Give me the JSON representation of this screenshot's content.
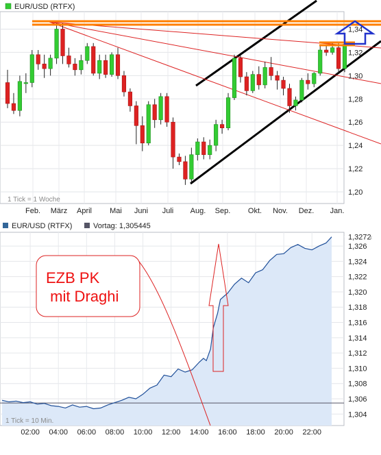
{
  "chart_data": [
    {
      "type": "candlestick",
      "legend": "EUR/USD (RTFX)",
      "tick_note": "1 Tick = 1 Woche",
      "x_tick_labels": [
        "Feb.",
        "März",
        "April",
        "Mai",
        "Juni",
        "Juli",
        "Aug.",
        "Sep.",
        "Okt.",
        "Nov.",
        "Dez.",
        "Jan."
      ],
      "y_tick_labels": [
        "1,20",
        "1,22",
        "1,24",
        "1,26",
        "1,28",
        "1,30",
        "1,32",
        "1,34"
      ],
      "y_ticks": [
        1.2,
        1.22,
        1.24,
        1.26,
        1.28,
        1.3,
        1.32,
        1.34
      ],
      "ylim": [
        1.19,
        1.355
      ],
      "up_color": "#33cc33",
      "down_color": "#dd2222",
      "candles": [
        {
          "o": 1.294,
          "h": 1.305,
          "l": 1.272,
          "c": 1.276
        },
        {
          "o": 1.276,
          "h": 1.285,
          "l": 1.267,
          "c": 1.27
        },
        {
          "o": 1.27,
          "h": 1.3,
          "l": 1.265,
          "c": 1.295
        },
        {
          "o": 1.294,
          "h": 1.302,
          "l": 1.285,
          "c": 1.294
        },
        {
          "o": 1.294,
          "h": 1.322,
          "l": 1.29,
          "c": 1.318
        },
        {
          "o": 1.318,
          "h": 1.322,
          "l": 1.305,
          "c": 1.31
        },
        {
          "o": 1.31,
          "h": 1.318,
          "l": 1.298,
          "c": 1.306
        },
        {
          "o": 1.306,
          "h": 1.318,
          "l": 1.3,
          "c": 1.315
        },
        {
          "o": 1.315,
          "h": 1.345,
          "l": 1.31,
          "c": 1.34
        },
        {
          "o": 1.34,
          "h": 1.345,
          "l": 1.31,
          "c": 1.317
        },
        {
          "o": 1.317,
          "h": 1.324,
          "l": 1.307,
          "c": 1.31
        },
        {
          "o": 1.31,
          "h": 1.315,
          "l": 1.3,
          "c": 1.305
        },
        {
          "o": 1.305,
          "h": 1.318,
          "l": 1.301,
          "c": 1.313
        },
        {
          "o": 1.313,
          "h": 1.328,
          "l": 1.31,
          "c": 1.325
        },
        {
          "o": 1.325,
          "h": 1.328,
          "l": 1.3,
          "c": 1.302
        },
        {
          "o": 1.302,
          "h": 1.318,
          "l": 1.297,
          "c": 1.313
        },
        {
          "o": 1.313,
          "h": 1.318,
          "l": 1.298,
          "c": 1.301
        },
        {
          "o": 1.301,
          "h": 1.32,
          "l": 1.299,
          "c": 1.318
        },
        {
          "o": 1.318,
          "h": 1.324,
          "l": 1.297,
          "c": 1.3
        },
        {
          "o": 1.3,
          "h": 1.304,
          "l": 1.282,
          "c": 1.286
        },
        {
          "o": 1.286,
          "h": 1.289,
          "l": 1.269,
          "c": 1.274
        },
        {
          "o": 1.274,
          "h": 1.278,
          "l": 1.241,
          "c": 1.257
        },
        {
          "o": 1.257,
          "h": 1.265,
          "l": 1.235,
          "c": 1.242
        },
        {
          "o": 1.242,
          "h": 1.278,
          "l": 1.24,
          "c": 1.275
        },
        {
          "o": 1.275,
          "h": 1.28,
          "l": 1.255,
          "c": 1.262
        },
        {
          "o": 1.262,
          "h": 1.285,
          "l": 1.258,
          "c": 1.282
        },
        {
          "o": 1.282,
          "h": 1.285,
          "l": 1.256,
          "c": 1.26
        },
        {
          "o": 1.26,
          "h": 1.264,
          "l": 1.22,
          "c": 1.23
        },
        {
          "o": 1.23,
          "h": 1.233,
          "l": 1.223,
          "c": 1.226
        },
        {
          "o": 1.226,
          "h": 1.231,
          "l": 1.206,
          "c": 1.211
        },
        {
          "o": 1.211,
          "h": 1.238,
          "l": 1.208,
          "c": 1.232
        },
        {
          "o": 1.232,
          "h": 1.246,
          "l": 1.227,
          "c": 1.243
        },
        {
          "o": 1.243,
          "h": 1.247,
          "l": 1.228,
          "c": 1.232
        },
        {
          "o": 1.232,
          "h": 1.245,
          "l": 1.228,
          "c": 1.24
        },
        {
          "o": 1.24,
          "h": 1.262,
          "l": 1.235,
          "c": 1.258
        },
        {
          "o": 1.258,
          "h": 1.262,
          "l": 1.25,
          "c": 1.255
        },
        {
          "o": 1.255,
          "h": 1.285,
          "l": 1.253,
          "c": 1.281
        },
        {
          "o": 1.281,
          "h": 1.318,
          "l": 1.279,
          "c": 1.315
        },
        {
          "o": 1.315,
          "h": 1.318,
          "l": 1.294,
          "c": 1.299
        },
        {
          "o": 1.299,
          "h": 1.303,
          "l": 1.283,
          "c": 1.287
        },
        {
          "o": 1.287,
          "h": 1.304,
          "l": 1.285,
          "c": 1.301
        },
        {
          "o": 1.301,
          "h": 1.308,
          "l": 1.288,
          "c": 1.292
        },
        {
          "o": 1.292,
          "h": 1.312,
          "l": 1.289,
          "c": 1.307
        },
        {
          "o": 1.307,
          "h": 1.316,
          "l": 1.296,
          "c": 1.3
        },
        {
          "o": 1.3,
          "h": 1.304,
          "l": 1.288,
          "c": 1.296
        },
        {
          "o": 1.296,
          "h": 1.299,
          "l": 1.283,
          "c": 1.289
        },
        {
          "o": 1.289,
          "h": 1.293,
          "l": 1.268,
          "c": 1.274
        },
        {
          "o": 1.274,
          "h": 1.282,
          "l": 1.27,
          "c": 1.279
        },
        {
          "o": 1.279,
          "h": 1.298,
          "l": 1.277,
          "c": 1.296
        },
        {
          "o": 1.296,
          "h": 1.302,
          "l": 1.288,
          "c": 1.293
        },
        {
          "o": 1.293,
          "h": 1.303,
          "l": 1.29,
          "c": 1.302
        },
        {
          "o": 1.302,
          "h": 1.326,
          "l": 1.3,
          "c": 1.322
        },
        {
          "o": 1.322,
          "h": 1.326,
          "l": 1.317,
          "c": 1.32
        },
        {
          "o": 1.32,
          "h": 1.328,
          "l": 1.318,
          "c": 1.324
        },
        {
          "o": 1.324,
          "h": 1.329,
          "l": 1.302,
          "c": 1.306
        },
        {
          "o": 1.306,
          "h": 1.33,
          "l": 1.303,
          "c": 1.327
        }
      ]
    },
    {
      "type": "area",
      "legend": "EUR/USD (RTFX)",
      "previous_close_label": "Vortag: 1,305445",
      "previous_close": 1.305445,
      "last_value_label": "1,3272",
      "last_value": 1.3272,
      "tick_note": "1 Tick = 10 Min.",
      "x_tick_labels": [
        "02:00",
        "04:00",
        "06:00",
        "08:00",
        "10:00",
        "12:00",
        "14:00",
        "16:00",
        "18:00",
        "20:00",
        "22:00"
      ],
      "y_tick_labels": [
        "1,304",
        "1,306",
        "1,308",
        "1,310",
        "1,312",
        "1,314",
        "1,316",
        "1,318",
        "1,320",
        "1,322",
        "1,324",
        "1,326"
      ],
      "y_ticks": [
        1.304,
        1.306,
        1.308,
        1.31,
        1.312,
        1.314,
        1.316,
        1.318,
        1.32,
        1.322,
        1.324,
        1.326
      ],
      "ylim": [
        1.3025,
        1.3278
      ],
      "x_hours": [
        0.0,
        0.5,
        1.0,
        1.5,
        2.0,
        2.5,
        3.0,
        3.5,
        4.0,
        4.5,
        5.0,
        5.5,
        6.0,
        6.5,
        7.0,
        7.5,
        8.0,
        8.5,
        9.0,
        9.5,
        10.0,
        10.5,
        11.0,
        11.5,
        12.0,
        12.5,
        13.0,
        13.5,
        14.0,
        14.3,
        14.5,
        14.8,
        15.0,
        15.3,
        15.5,
        15.8,
        16.0,
        16.5,
        17.0,
        17.5,
        18.0,
        18.5,
        19.0,
        19.5,
        20.0,
        20.5,
        21.0,
        21.5,
        22.0,
        22.5,
        23.0,
        23.4
      ],
      "values": [
        1.3058,
        1.3056,
        1.3057,
        1.3055,
        1.3056,
        1.3053,
        1.3054,
        1.3051,
        1.305,
        1.3048,
        1.3052,
        1.3049,
        1.305,
        1.3047,
        1.3048,
        1.3052,
        1.3055,
        1.3058,
        1.3062,
        1.306,
        1.3066,
        1.3074,
        1.3078,
        1.3091,
        1.3089,
        1.3099,
        1.3095,
        1.3098,
        1.3108,
        1.3113,
        1.311,
        1.3125,
        1.3153,
        1.3172,
        1.319,
        1.3195,
        1.3198,
        1.321,
        1.3218,
        1.3212,
        1.3225,
        1.3229,
        1.3241,
        1.3249,
        1.325,
        1.3258,
        1.3262,
        1.3257,
        1.3255,
        1.326,
        1.3264,
        1.3272
      ]
    }
  ],
  "annotation": {
    "text_line1": "EZB PK",
    "text_line2": " mit Draghi"
  }
}
